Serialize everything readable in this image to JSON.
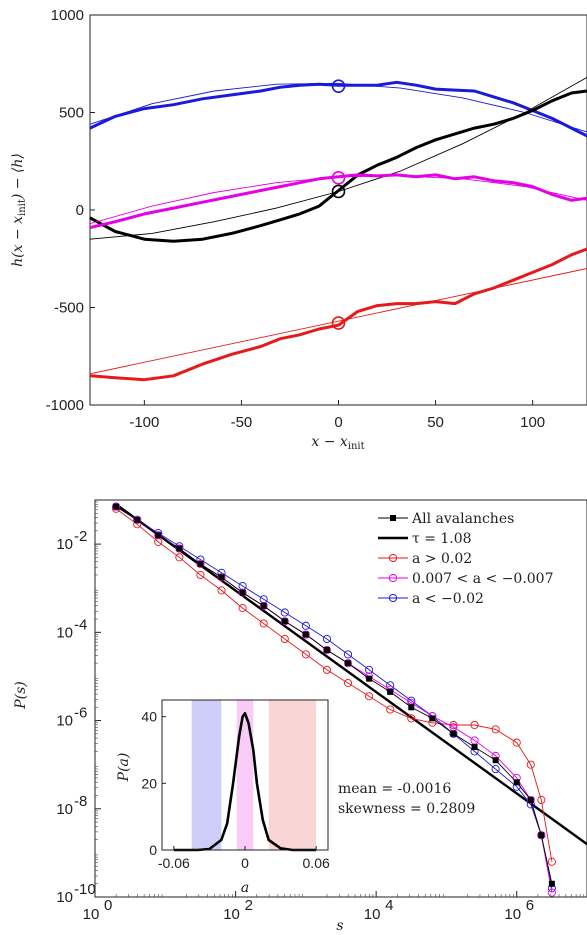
{
  "chart_data": [
    {
      "type": "line",
      "xlabel": "x − x_init",
      "ylabel": "h(x − x_init) − ⟨h⟩",
      "xlim": [
        -128,
        128
      ],
      "ylim": [
        -1000,
        1000
      ],
      "xticks": [
        -100,
        -50,
        0,
        50,
        100
      ],
      "xtick_labels": [
        "-100",
        "-50",
        "0",
        "50",
        "100"
      ],
      "yticks": [
        -1000,
        -500,
        0,
        500,
        1000
      ],
      "ytick_labels": [
        "-1000",
        "-500",
        "0",
        "500",
        "1000"
      ],
      "series": [
        {
          "color": "#1a1adb",
          "x": [
            -128,
            -115,
            -100,
            -85,
            -70,
            -55,
            -40,
            -30,
            -20,
            -10,
            0,
            10,
            20,
            30,
            40,
            50,
            60,
            70,
            80,
            90,
            100,
            110,
            120,
            128
          ],
          "y": [
            420,
            480,
            520,
            540,
            570,
            590,
            610,
            630,
            640,
            645,
            640,
            640,
            640,
            655,
            640,
            620,
            615,
            610,
            580,
            550,
            510,
            470,
            420,
            380
          ],
          "fit_x": [
            -128,
            -96,
            -64,
            -32,
            0,
            32,
            64,
            96,
            128
          ],
          "fit_y": [
            440,
            545,
            610,
            645,
            650,
            625,
            575,
            500,
            400
          ],
          "marker": {
            "x": 0,
            "y": 635
          }
        },
        {
          "color": "#000000",
          "x": [
            -128,
            -115,
            -100,
            -85,
            -70,
            -55,
            -40,
            -30,
            -20,
            -10,
            0,
            10,
            20,
            30,
            40,
            50,
            60,
            70,
            80,
            90,
            100,
            110,
            120,
            128
          ],
          "y": [
            -40,
            -110,
            -150,
            -160,
            -150,
            -120,
            -80,
            -50,
            -20,
            20,
            100,
            180,
            230,
            270,
            320,
            360,
            390,
            420,
            440,
            470,
            510,
            560,
            600,
            610
          ],
          "fit_x": [
            -128,
            -96,
            -64,
            -32,
            0,
            32,
            64,
            96,
            128
          ],
          "fit_y": [
            -150,
            -120,
            -60,
            10,
            95,
            200,
            340,
            500,
            680
          ],
          "marker": {
            "x": 0,
            "y": 95
          }
        },
        {
          "color": "#e600e6",
          "x": [
            -128,
            -115,
            -100,
            -85,
            -70,
            -55,
            -40,
            -30,
            -20,
            -10,
            0,
            10,
            20,
            30,
            40,
            50,
            60,
            70,
            80,
            90,
            100,
            110,
            120,
            128
          ],
          "y": [
            -90,
            -60,
            -20,
            10,
            40,
            70,
            100,
            120,
            140,
            160,
            170,
            180,
            175,
            180,
            170,
            180,
            160,
            170,
            150,
            140,
            120,
            80,
            50,
            60
          ],
          "fit_x": [
            -128,
            -96,
            -64,
            -32,
            0,
            32,
            64,
            96,
            128
          ],
          "fit_y": [
            -70,
            20,
            90,
            140,
            170,
            175,
            160,
            120,
            50
          ],
          "marker": {
            "x": 0,
            "y": 165
          }
        },
        {
          "color": "#e61a1a",
          "x": [
            -128,
            -115,
            -100,
            -85,
            -70,
            -55,
            -40,
            -30,
            -20,
            -10,
            0,
            10,
            20,
            30,
            40,
            50,
            60,
            70,
            80,
            90,
            100,
            110,
            120,
            128
          ],
          "y": [
            -850,
            -860,
            -870,
            -850,
            -790,
            -740,
            -700,
            -660,
            -640,
            -610,
            -590,
            -520,
            -490,
            -480,
            -480,
            -470,
            -480,
            -430,
            -400,
            -360,
            -320,
            -280,
            -230,
            -200
          ],
          "fit_x": [
            -128,
            128
          ],
          "fit_y": [
            -840,
            -300
          ],
          "marker": {
            "x": 0,
            "y": -580
          }
        }
      ]
    },
    {
      "type": "line",
      "xscale": "log",
      "yscale": "log",
      "xlabel": "s",
      "ylabel": "P(s)",
      "xlim_log10": [
        0,
        7
      ],
      "ylim_log10": [
        -10,
        -1
      ],
      "xticks_log10": [
        0,
        2,
        4,
        6
      ],
      "xtick_labels": [
        "10",
        "10",
        "10",
        "10"
      ],
      "xtick_exponents": [
        "0",
        "2",
        "4",
        "6"
      ],
      "yticks_log10": [
        -10,
        -8,
        -6,
        -4,
        -2
      ],
      "ytick_labels": [
        "10",
        "10",
        "10",
        "10",
        "10"
      ],
      "ytick_exponents": [
        "-10",
        "-8",
        "-6",
        "-4",
        "-2"
      ],
      "legend_position": "top-right",
      "series": [
        {
          "name": "All avalanches",
          "color": "#000000",
          "marker": "square",
          "log10_x": [
            0.3,
            0.6,
            0.9,
            1.2,
            1.5,
            1.8,
            2.1,
            2.4,
            2.7,
            3.0,
            3.3,
            3.6,
            3.9,
            4.2,
            4.5,
            4.8,
            5.1,
            5.4,
            5.7,
            6.0,
            6.2,
            6.35,
            6.5
          ],
          "log10_y": [
            -1.15,
            -1.45,
            -1.8,
            -2.1,
            -2.45,
            -2.75,
            -3.1,
            -3.4,
            -3.75,
            -4.05,
            -4.4,
            -4.7,
            -5.05,
            -5.35,
            -5.7,
            -5.95,
            -6.3,
            -6.6,
            -6.9,
            -7.4,
            -7.8,
            -8.6,
            -9.7
          ]
        },
        {
          "name": "τ = 1.08",
          "color": "#000000",
          "line_only": true,
          "log10_x": [
            0.3,
            7.0
          ],
          "log10_y": [
            -1.1,
            -8.8
          ]
        },
        {
          "name": "a > 0.02",
          "color": "#e61a1a",
          "marker": "circle",
          "log10_x": [
            0.3,
            0.6,
            0.9,
            1.2,
            1.5,
            1.8,
            2.1,
            2.4,
            2.7,
            3.0,
            3.3,
            3.6,
            3.9,
            4.2,
            4.5,
            4.8,
            5.1,
            5.4,
            5.7,
            6.0,
            6.2,
            6.35,
            6.5
          ],
          "log10_y": [
            -1.2,
            -1.55,
            -1.95,
            -2.3,
            -2.7,
            -3.05,
            -3.45,
            -3.8,
            -4.15,
            -4.5,
            -4.85,
            -5.15,
            -5.45,
            -5.75,
            -5.95,
            -6.05,
            -6.1,
            -6.1,
            -6.2,
            -6.5,
            -7.0,
            -7.8,
            -9.2
          ]
        },
        {
          "name": "0.007 < a < −0.007",
          "color": "#e600e6",
          "marker": "circle",
          "log10_x": [
            0.3,
            0.6,
            0.9,
            1.2,
            1.5,
            1.8,
            2.1,
            2.4,
            2.7,
            3.0,
            3.3,
            3.6,
            3.9,
            4.2,
            4.5,
            4.8,
            5.1,
            5.4,
            5.7,
            6.0,
            6.2,
            6.35,
            6.5
          ],
          "log10_y": [
            -1.15,
            -1.45,
            -1.8,
            -2.1,
            -2.45,
            -2.75,
            -3.1,
            -3.4,
            -3.75,
            -4.05,
            -4.4,
            -4.7,
            -5.0,
            -5.3,
            -5.6,
            -5.9,
            -6.15,
            -6.45,
            -6.8,
            -7.3,
            -7.8,
            -8.6,
            -9.9
          ]
        },
        {
          "name": "a < −0.02",
          "color": "#1a1adb",
          "marker": "circle",
          "log10_x": [
            0.3,
            0.6,
            0.9,
            1.2,
            1.5,
            1.8,
            2.1,
            2.4,
            2.7,
            3.0,
            3.3,
            3.6,
            3.9,
            4.2,
            4.5,
            4.8,
            5.1,
            5.4,
            5.7,
            6.0,
            6.2,
            6.35,
            6.5
          ],
          "log10_y": [
            -1.15,
            -1.45,
            -1.75,
            -2.05,
            -2.35,
            -2.65,
            -2.95,
            -3.25,
            -3.55,
            -3.85,
            -4.15,
            -4.5,
            -4.85,
            -5.2,
            -5.55,
            -5.9,
            -6.3,
            -6.7,
            -7.1,
            -7.5,
            -7.9,
            -8.6,
            -9.8
          ]
        }
      ],
      "annotations": [
        "mean = -0.0016",
        "skewness = 0.2809"
      ]
    },
    {
      "type": "line",
      "inset": true,
      "xlabel": "a",
      "ylabel": "P(a)",
      "xlim": [
        -0.07,
        0.07
      ],
      "ylim": [
        0,
        45
      ],
      "xticks": [
        -0.06,
        0,
        0.06
      ],
      "xtick_labels": [
        "-0.06",
        "0",
        "0.06"
      ],
      "yticks": [
        0,
        20,
        40
      ],
      "ytick_labels": [
        "0",
        "20",
        "40"
      ],
      "bands": [
        {
          "from": -0.045,
          "to": -0.02,
          "color": "#b9b9f5"
        },
        {
          "from": -0.007,
          "to": 0.007,
          "color": "#f7b5f7"
        },
        {
          "from": 0.02,
          "to": 0.06,
          "color": "#f7c3c3"
        }
      ],
      "series": [
        {
          "color": "#000000",
          "x": [
            -0.06,
            -0.04,
            -0.03,
            -0.02,
            -0.015,
            -0.01,
            -0.005,
            -0.002,
            0,
            0.003,
            0.007,
            0.01,
            0.015,
            0.02,
            0.03,
            0.04,
            0.06
          ],
          "y": [
            0,
            0,
            0.3,
            3,
            8,
            20,
            34,
            40,
            41,
            38,
            30,
            20,
            9,
            3,
            0.5,
            0,
            0
          ]
        }
      ]
    }
  ]
}
